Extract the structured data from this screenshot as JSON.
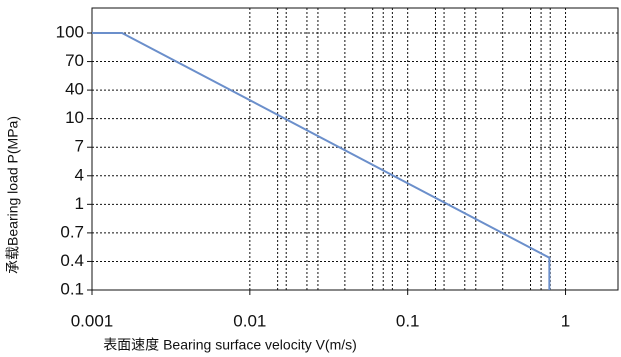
{
  "chart_data": {
    "type": "line",
    "x_label": "表面速度 Bearing surface velocity V(m/s)",
    "y_label": "承载Bearing load P(MPa)",
    "x_log": true,
    "xlim": [
      0.001,
      2.15
    ],
    "xticks": [
      0.001,
      0.01,
      0.1,
      1
    ],
    "x_minor_grid": [
      0.015,
      0.017,
      0.023,
      0.027,
      0.04,
      0.06,
      0.07,
      0.08,
      0.15,
      0.17,
      0.23,
      0.27,
      0.4,
      0.6,
      0.7,
      0.8
    ],
    "ylim": [
      0.1,
      100
    ],
    "yticks": [
      0.1,
      0.4,
      0.7,
      1,
      4,
      7,
      10,
      40,
      70,
      100
    ],
    "grid": true,
    "series": [
      {
        "color": "#6b8fcb",
        "x": [
          0.001,
          0.00155,
          0.79,
          0.79
        ],
        "values": [
          100,
          100,
          0.43,
          0.1
        ]
      }
    ]
  }
}
